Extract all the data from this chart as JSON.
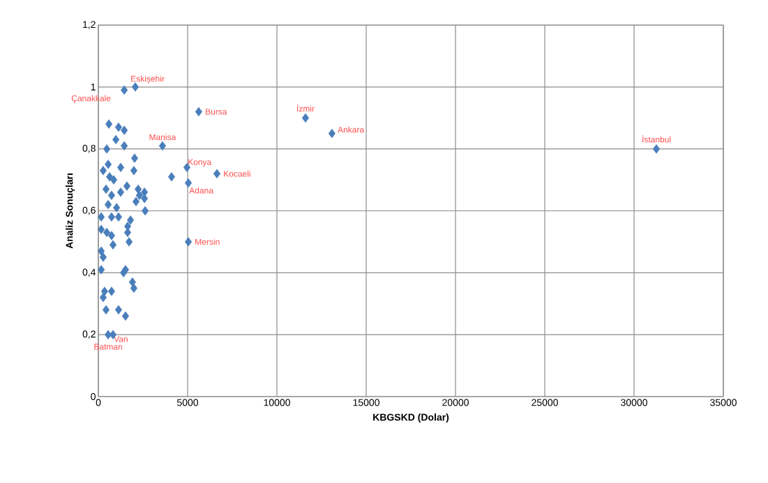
{
  "chart_data": {
    "type": "scatter",
    "xlabel": "KBGSKD (Dolar)",
    "ylabel": "Analiz Sonuçları",
    "xlim": [
      0,
      35000
    ],
    "ylim": [
      0,
      1.2
    ],
    "xticks": [
      0,
      5000,
      10000,
      15000,
      20000,
      25000,
      30000,
      35000
    ],
    "yticks": [
      {
        "value": 0,
        "label": "0"
      },
      {
        "value": 0.2,
        "label": "0,2"
      },
      {
        "value": 0.4,
        "label": "0,4"
      },
      {
        "value": 0.6,
        "label": "0,6"
      },
      {
        "value": 0.8,
        "label": "0,8"
      },
      {
        "value": 1,
        "label": "1"
      },
      {
        "value": 1.2,
        "label": "1,2"
      }
    ],
    "grid": true,
    "marker": "diamond",
    "series": [
      {
        "color": "#4a7ebb",
        "x": [
          2070,
          1450,
          5620,
          11600,
          13080,
          31250,
          3590,
          4960,
          6640,
          5040,
          5040,
          820,
          550,
          4100,
          590,
          1130,
          1450,
          980,
          470,
          1450,
          2030,
          550,
          270,
          1250,
          1990,
          630,
          860,
          1600,
          430,
          1250,
          2230,
          2580,
          2300,
          2580,
          2110,
          740,
          550,
          1020,
          2620,
          160,
          740,
          1640,
          160,
          470,
          1640,
          740,
          1720,
          820,
          1130,
          1800,
          160,
          270,
          160,
          1520,
          1410,
          1910,
          1990,
          350,
          740,
          270,
          430,
          1130,
          1520
        ],
        "values": [
          1.0,
          0.99,
          0.92,
          0.9,
          0.85,
          0.8,
          0.81,
          0.74,
          0.72,
          0.69,
          0.5,
          0.2,
          0.2,
          0.71,
          0.88,
          0.87,
          0.86,
          0.83,
          0.8,
          0.81,
          0.77,
          0.75,
          0.73,
          0.74,
          0.73,
          0.71,
          0.7,
          0.68,
          0.67,
          0.66,
          0.67,
          0.66,
          0.65,
          0.64,
          0.63,
          0.65,
          0.62,
          0.61,
          0.6,
          0.58,
          0.58,
          0.55,
          0.54,
          0.53,
          0.53,
          0.52,
          0.5,
          0.49,
          0.58,
          0.57,
          0.47,
          0.45,
          0.41,
          0.41,
          0.4,
          0.37,
          0.35,
          0.34,
          0.34,
          0.32,
          0.28,
          0.28,
          0.26
        ]
      }
    ],
    "annotations": [
      {
        "text": "Eskişehir",
        "x": 2070,
        "y": 1.0
      },
      {
        "text": "Çanakkale",
        "x": 1450,
        "y": 0.99
      },
      {
        "text": "Bursa",
        "x": 5620,
        "y": 0.92
      },
      {
        "text": "İzmir",
        "x": 11600,
        "y": 0.9
      },
      {
        "text": "Ankara",
        "x": 13080,
        "y": 0.85
      },
      {
        "text": "İstanbul",
        "x": 31250,
        "y": 0.8
      },
      {
        "text": "Manisa",
        "x": 3590,
        "y": 0.81
      },
      {
        "text": "Konya",
        "x": 4960,
        "y": 0.74
      },
      {
        "text": "Kocaeli",
        "x": 6640,
        "y": 0.72
      },
      {
        "text": "Adana",
        "x": 5040,
        "y": 0.69
      },
      {
        "text": "Mersin",
        "x": 5040,
        "y": 0.5
      },
      {
        "text": "Van",
        "x": 820,
        "y": 0.2
      },
      {
        "text": "Batman",
        "x": 550,
        "y": 0.2
      }
    ]
  }
}
